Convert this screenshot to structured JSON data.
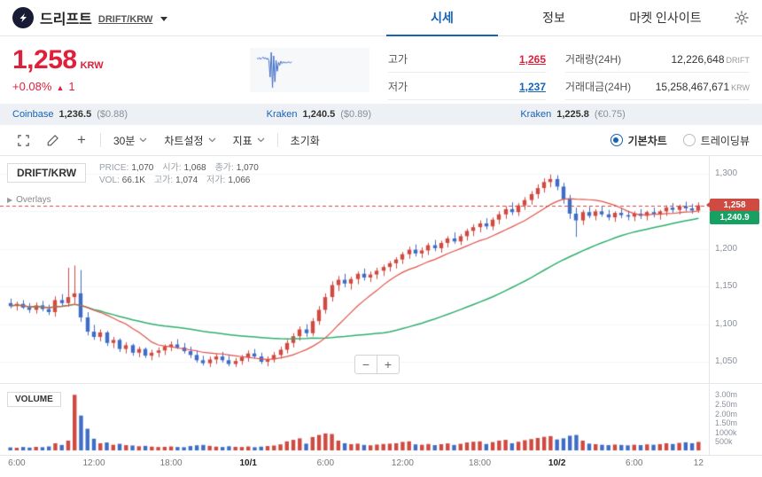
{
  "header": {
    "coin_name": "드리프트",
    "coin_pair": "DRIFT/KRW",
    "tabs": [
      {
        "label": "시세",
        "active": true
      },
      {
        "label": "정보",
        "active": false
      },
      {
        "label": "마켓 인사이트",
        "active": false
      }
    ]
  },
  "price": {
    "current": "1,258",
    "unit": "KRW",
    "change_pct": "+0.08%",
    "change_arrow": "▲",
    "change_amount": "1"
  },
  "stats": {
    "high_label": "고가",
    "high": "1,265",
    "low_label": "저가",
    "low": "1,237",
    "volume_label": "거래량(24H)",
    "volume": "12,226,648",
    "volume_unit": "DRIFT",
    "value_label": "거래대금(24H)",
    "value": "15,258,467,671",
    "value_unit": "KRW"
  },
  "exchanges": [
    {
      "name": "Coinbase",
      "price": "1,236.5",
      "ref": "($0.88)"
    },
    {
      "name": "Kraken",
      "price": "1,240.5",
      "ref": "($0.89)"
    },
    {
      "name": "Kraken",
      "price": "1,225.8",
      "ref": "(€0.75)"
    }
  ],
  "toolbar": {
    "interval": "30분",
    "chart_settings": "차트설정",
    "indicators": "지표",
    "reset": "초기화",
    "add": "+",
    "radio_basic": "기본차트",
    "radio_tradingview": "트레이딩뷰"
  },
  "chart": {
    "symbol": "DRIFT/KRW",
    "overlays_caret": "▶",
    "overlays_label": "Overlays",
    "volume_label": "VOLUME",
    "last_price_label": "1,258",
    "ma_badge_label": "1,240.9",
    "zoom_out": "−",
    "zoom_in": "+",
    "info1": [
      {
        "k": "PRICE:",
        "v": "1,070"
      },
      {
        "k": "시가:",
        "v": "1,068"
      },
      {
        "k": "종가:",
        "v": "1,070"
      }
    ],
    "info2": [
      {
        "k": "VOL:",
        "v": "66.1K"
      },
      {
        "k": "고가:",
        "v": "1,074"
      },
      {
        "k": "저가:",
        "v": "1,066"
      }
    ]
  },
  "sparkline": [
    62,
    61,
    63,
    60,
    62,
    64,
    61,
    63,
    60,
    62,
    58,
    30,
    72,
    12,
    66,
    22,
    58,
    40,
    55,
    50,
    57,
    53,
    56,
    54,
    55,
    54,
    56,
    55,
    54,
    56
  ],
  "colors": {
    "accent_red": "#e0203a",
    "accent_blue": "#1763b6",
    "candle_up": "#cf4a41",
    "candle_down": "#3f6dc6",
    "ma_short": "#e0534a",
    "ma_long": "#2fae6e",
    "badge_up_bg": "#cf4a41",
    "badge_ma_bg": "#16a163"
  },
  "chart_data": {
    "type": "candlestick",
    "pair": "DRIFT/KRW",
    "interval": "30m",
    "last_price": 1258,
    "ma_long_last": 1240.9,
    "ma_periods": {
      "short": 12,
      "long": 48
    },
    "price_axis": {
      "min": 1050,
      "max": 1300,
      "ticks": [
        {
          "v": 1300,
          "label": "1,300"
        },
        {
          "v": 1250,
          "label": "1,250"
        },
        {
          "v": 1200,
          "label": "1,200"
        },
        {
          "v": 1150,
          "label": "1,150"
        },
        {
          "v": 1100,
          "label": "1,100"
        },
        {
          "v": 1050,
          "label": "1,050"
        }
      ]
    },
    "volume_axis": {
      "max": 3200,
      "ticks": [
        {
          "v": 3000,
          "label": "3.00m"
        },
        {
          "v": 2500,
          "label": "2.50m"
        },
        {
          "v": 2000,
          "label": "2.00m"
        },
        {
          "v": 1500,
          "label": "1.50m"
        },
        {
          "v": 1000,
          "label": "1000k"
        },
        {
          "v": 500,
          "label": "500k"
        }
      ]
    },
    "time_ticks": [
      {
        "i": 1,
        "label": "6:00",
        "bold": false
      },
      {
        "i": 13,
        "label": "12:00",
        "bold": false
      },
      {
        "i": 25,
        "label": "18:00",
        "bold": false
      },
      {
        "i": 37,
        "label": "10/1",
        "bold": true
      },
      {
        "i": 49,
        "label": "6:00",
        "bold": false
      },
      {
        "i": 61,
        "label": "12:00",
        "bold": false
      },
      {
        "i": 73,
        "label": "18:00",
        "bold": false
      },
      {
        "i": 85,
        "label": "10/2",
        "bold": true
      },
      {
        "i": 97,
        "label": "6:00",
        "bold": false
      },
      {
        "i": 107,
        "label": "12",
        "bold": false
      }
    ],
    "candles": [
      [
        1128,
        1134,
        1121,
        1124,
        160
      ],
      [
        1124,
        1130,
        1118,
        1127,
        140
      ],
      [
        1127,
        1132,
        1120,
        1122,
        180
      ],
      [
        1122,
        1128,
        1115,
        1119,
        150
      ],
      [
        1119,
        1129,
        1114,
        1125,
        190
      ],
      [
        1125,
        1131,
        1117,
        1120,
        170
      ],
      [
        1120,
        1126,
        1112,
        1116,
        210
      ],
      [
        1116,
        1137,
        1110,
        1132,
        380
      ],
      [
        1132,
        1140,
        1123,
        1128,
        290
      ],
      [
        1128,
        1175,
        1123,
        1136,
        520
      ],
      [
        1136,
        1178,
        1127,
        1141,
        2950
      ],
      [
        1141,
        1172,
        1103,
        1109,
        1850
      ],
      [
        1109,
        1116,
        1085,
        1090,
        1150
      ],
      [
        1090,
        1099,
        1079,
        1083,
        620
      ],
      [
        1083,
        1093,
        1077,
        1089,
        380
      ],
      [
        1089,
        1091,
        1071,
        1075,
        420
      ],
      [
        1075,
        1083,
        1068,
        1079,
        300
      ],
      [
        1079,
        1081,
        1063,
        1067,
        350
      ],
      [
        1067,
        1076,
        1061,
        1072,
        280
      ],
      [
        1072,
        1074,
        1058,
        1062,
        260
      ],
      [
        1062,
        1070,
        1056,
        1067,
        220
      ],
      [
        1067,
        1069,
        1055,
        1058,
        240
      ],
      [
        1058,
        1066,
        1052,
        1062,
        200
      ],
      [
        1062,
        1069,
        1056,
        1065,
        180
      ],
      [
        1065,
        1073,
        1059,
        1070,
        190
      ],
      [
        1070,
        1077,
        1064,
        1073,
        210
      ],
      [
        1073,
        1080,
        1067,
        1069,
        180
      ],
      [
        1069,
        1075,
        1061,
        1064,
        170
      ],
      [
        1064,
        1070,
        1055,
        1059,
        230
      ],
      [
        1059,
        1065,
        1049,
        1052,
        270
      ],
      [
        1052,
        1058,
        1045,
        1048,
        290
      ],
      [
        1048,
        1057,
        1043,
        1053,
        240
      ],
      [
        1053,
        1061,
        1047,
        1057,
        200
      ],
      [
        1057,
        1063,
        1049,
        1052,
        180
      ],
      [
        1052,
        1058,
        1044,
        1047,
        220
      ],
      [
        1047,
        1055,
        1043,
        1051,
        190
      ],
      [
        1051,
        1059,
        1046,
        1056,
        180
      ],
      [
        1056,
        1065,
        1050,
        1061,
        210
      ],
      [
        1061,
        1067,
        1054,
        1057,
        170
      ],
      [
        1057,
        1062,
        1047,
        1050,
        200
      ],
      [
        1050,
        1057,
        1044,
        1053,
        230
      ],
      [
        1053,
        1063,
        1049,
        1059,
        260
      ],
      [
        1059,
        1070,
        1054,
        1066,
        320
      ],
      [
        1066,
        1079,
        1061,
        1075,
        480
      ],
      [
        1075,
        1088,
        1069,
        1084,
        560
      ],
      [
        1084,
        1097,
        1078,
        1093,
        640
      ],
      [
        1093,
        1100,
        1083,
        1088,
        360
      ],
      [
        1088,
        1108,
        1084,
        1104,
        710
      ],
      [
        1104,
        1124,
        1099,
        1119,
        820
      ],
      [
        1119,
        1141,
        1114,
        1136,
        900
      ],
      [
        1136,
        1157,
        1130,
        1152,
        870
      ],
      [
        1152,
        1164,
        1144,
        1159,
        520
      ],
      [
        1159,
        1167,
        1149,
        1154,
        380
      ],
      [
        1154,
        1163,
        1146,
        1160,
        330
      ],
      [
        1160,
        1170,
        1153,
        1167,
        360
      ],
      [
        1167,
        1174,
        1158,
        1162,
        290
      ],
      [
        1162,
        1170,
        1156,
        1166,
        270
      ],
      [
        1166,
        1175,
        1160,
        1171,
        310
      ],
      [
        1171,
        1179,
        1164,
        1176,
        340
      ],
      [
        1176,
        1184,
        1170,
        1181,
        360
      ],
      [
        1181,
        1189,
        1174,
        1186,
        380
      ],
      [
        1186,
        1196,
        1180,
        1193,
        450
      ],
      [
        1193,
        1203,
        1187,
        1199,
        480
      ],
      [
        1199,
        1206,
        1190,
        1194,
        320
      ],
      [
        1194,
        1202,
        1188,
        1198,
        300
      ],
      [
        1198,
        1208,
        1192,
        1205,
        340
      ],
      [
        1205,
        1212,
        1197,
        1201,
        280
      ],
      [
        1201,
        1211,
        1195,
        1208,
        330
      ],
      [
        1208,
        1217,
        1202,
        1214,
        370
      ],
      [
        1214,
        1222,
        1207,
        1210,
        290
      ],
      [
        1210,
        1220,
        1205,
        1217,
        350
      ],
      [
        1217,
        1227,
        1211,
        1224,
        420
      ],
      [
        1224,
        1233,
        1217,
        1229,
        460
      ],
      [
        1229,
        1238,
        1222,
        1234,
        480
      ],
      [
        1234,
        1241,
        1226,
        1230,
        340
      ],
      [
        1230,
        1242,
        1225,
        1239,
        440
      ],
      [
        1239,
        1250,
        1233,
        1246,
        520
      ],
      [
        1246,
        1257,
        1240,
        1253,
        560
      ],
      [
        1253,
        1262,
        1245,
        1249,
        380
      ],
      [
        1249,
        1261,
        1244,
        1258,
        460
      ],
      [
        1258,
        1269,
        1252,
        1265,
        540
      ],
      [
        1265,
        1277,
        1259,
        1273,
        600
      ],
      [
        1273,
        1286,
        1267,
        1281,
        660
      ],
      [
        1281,
        1294,
        1275,
        1289,
        720
      ],
      [
        1289,
        1299,
        1282,
        1293,
        760
      ],
      [
        1293,
        1298,
        1278,
        1283,
        580
      ],
      [
        1283,
        1288,
        1260,
        1266,
        640
      ],
      [
        1266,
        1272,
        1240,
        1247,
        780
      ],
      [
        1247,
        1255,
        1216,
        1238,
        820
      ],
      [
        1238,
        1252,
        1232,
        1249,
        520
      ],
      [
        1249,
        1256,
        1241,
        1244,
        360
      ],
      [
        1244,
        1253,
        1238,
        1250,
        330
      ],
      [
        1250,
        1257,
        1243,
        1246,
        300
      ],
      [
        1246,
        1252,
        1238,
        1242,
        280
      ],
      [
        1242,
        1250,
        1236,
        1248,
        310
      ],
      [
        1248,
        1254,
        1241,
        1245,
        290
      ],
      [
        1245,
        1251,
        1238,
        1243,
        270
      ],
      [
        1243,
        1250,
        1237,
        1247,
        300
      ],
      [
        1247,
        1253,
        1240,
        1244,
        280
      ],
      [
        1244,
        1251,
        1238,
        1249,
        320
      ],
      [
        1249,
        1255,
        1242,
        1246,
        300
      ],
      [
        1246,
        1252,
        1239,
        1250,
        330
      ],
      [
        1250,
        1258,
        1244,
        1255,
        380
      ],
      [
        1255,
        1261,
        1248,
        1252,
        340
      ],
      [
        1252,
        1259,
        1246,
        1257,
        400
      ],
      [
        1257,
        1263,
        1250,
        1254,
        430
      ],
      [
        1254,
        1260,
        1247,
        1251,
        380
      ],
      [
        1251,
        1262,
        1248,
        1258,
        450
      ]
    ]
  }
}
